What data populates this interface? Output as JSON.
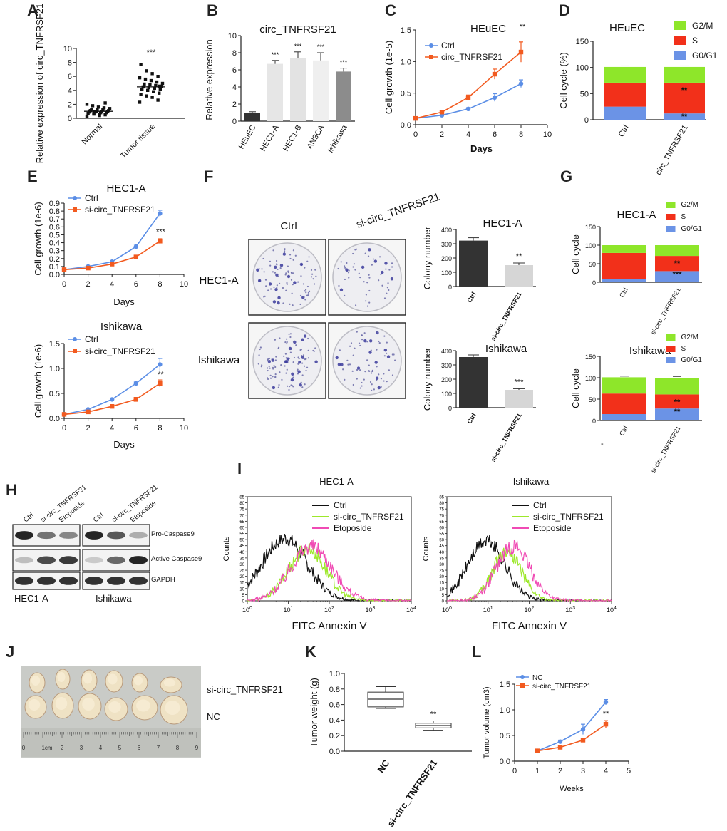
{
  "panels": {
    "A": {
      "letter": "A"
    },
    "B": {
      "letter": "B"
    },
    "C": {
      "letter": "C"
    },
    "D": {
      "letter": "D"
    },
    "E": {
      "letter": "E"
    },
    "F": {
      "letter": "F"
    },
    "G": {
      "letter": "G"
    },
    "H": {
      "letter": "H"
    },
    "I": {
      "letter": "I"
    },
    "J": {
      "letter": "J"
    },
    "K": {
      "letter": "K"
    },
    "L": {
      "letter": "L"
    }
  },
  "colors": {
    "blue": "#5b8ee6",
    "orange": "#f25a1f",
    "green": "#8ee62a",
    "red": "#f2301a",
    "g0blue": "#6b93e6",
    "black": "#111111",
    "pink": "#f04ab4",
    "lime": "#9de82b",
    "dark_bar": "#333333",
    "light_bar": "#d6d6d6"
  },
  "chart_data": [
    {
      "id": "A",
      "type": "scatter",
      "ylabel": "Relative expression of circ_TNFRSF21",
      "categories": [
        "Normal",
        "Tumor tissue"
      ],
      "yticks": [
        0,
        2,
        4,
        6,
        8,
        10
      ],
      "ylim": [
        0,
        10
      ],
      "significance": "***",
      "groups": [
        {
          "name": "Normal",
          "values": [
            0.3,
            0.5,
            0.6,
            0.7,
            0.7,
            0.8,
            0.8,
            0.9,
            0.9,
            1.0,
            1.0,
            1.0,
            1.1,
            1.1,
            1.2,
            1.2,
            1.3,
            1.4,
            1.5,
            1.6,
            1.8,
            2.0,
            2.2,
            0.4,
            0.6
          ],
          "mean": 1.0
        },
        {
          "name": "Tumor tissue",
          "values": [
            2.3,
            2.6,
            3.0,
            3.2,
            3.4,
            3.6,
            3.8,
            4.0,
            4.1,
            4.2,
            4.3,
            4.4,
            4.5,
            4.6,
            4.7,
            4.8,
            4.9,
            5.0,
            5.2,
            5.4,
            5.6,
            5.8,
            6.0,
            6.4,
            6.8,
            7.7,
            4.6
          ],
          "mean": 4.5
        }
      ]
    },
    {
      "id": "B",
      "type": "bar",
      "title": "circ_TNFRSF21",
      "ylabel": "Relative expression",
      "categories": [
        "HEuEC",
        "HEC1-A",
        "HEC1-B",
        "AN3CA",
        "Ishikawa"
      ],
      "values": [
        1.0,
        6.7,
        7.4,
        7.1,
        5.8
      ],
      "errors": [
        0.1,
        0.4,
        0.7,
        0.9,
        0.4
      ],
      "significance": [
        "",
        "***",
        "***",
        "***",
        "***"
      ],
      "bar_colors": [
        "#333333",
        "#e6e6e6",
        "#e3e3e3",
        "#efefef",
        "#8c8c8c"
      ],
      "yticks": [
        0,
        2,
        4,
        6,
        8,
        10
      ],
      "ylim": [
        0,
        10
      ]
    },
    {
      "id": "C",
      "type": "line",
      "title": "HEuEC",
      "xlabel": "Days",
      "ylabel": "Cell growth (1e-5)",
      "xticks": [
        0,
        2,
        4,
        6,
        8,
        10
      ],
      "yticks": [
        "0.0",
        "0.5",
        "1.0",
        "1.5"
      ],
      "xlim": [
        0,
        10
      ],
      "ylim": [
        0,
        1.5
      ],
      "x": [
        0,
        2,
        4,
        6,
        8
      ],
      "series": [
        {
          "name": "Ctrl",
          "values": [
            0.1,
            0.15,
            0.25,
            0.43,
            0.65
          ],
          "errors": [
            0,
            0.01,
            0.02,
            0.06,
            0.06
          ],
          "color": "#5b8ee6",
          "marker": "circle"
        },
        {
          "name": "circ_TNFRSF21",
          "values": [
            0.1,
            0.2,
            0.43,
            0.8,
            1.15
          ],
          "errors": [
            0,
            0.02,
            0.04,
            0.08,
            0.16
          ],
          "color": "#f25a1f",
          "marker": "square"
        }
      ],
      "significance": "**",
      "legend": [
        "Ctrl",
        "circ_TNFRSF21"
      ]
    },
    {
      "id": "D",
      "type": "bar",
      "title": "HEuEC",
      "ylabel": "Cell cycle (%)",
      "categories": [
        "Ctrl",
        "circ_TNFRSF21"
      ],
      "series": [
        {
          "name": "G0/G1",
          "values": [
            25,
            12
          ],
          "color": "#6b93e6"
        },
        {
          "name": "S",
          "values": [
            46,
            59
          ],
          "color": "#f2301a"
        },
        {
          "name": "G2/M",
          "values": [
            30,
            30
          ],
          "color": "#8ee62a"
        }
      ],
      "legend": [
        "G2/M",
        "S",
        "G0/G1"
      ],
      "yticks": [
        0,
        50,
        100,
        150
      ],
      "ylim": [
        0,
        150
      ],
      "significance": [
        "**",
        "**"
      ]
    },
    {
      "id": "E1",
      "type": "line",
      "title": "HEC1-A",
      "xlabel": "Days",
      "ylabel": "Cell growth (1e-6)",
      "xticks": [
        0,
        2,
        4,
        6,
        8,
        10
      ],
      "yticks": [
        "0.0",
        "0.1",
        "0.2",
        "0.3",
        "0.4",
        "0.5",
        "0.6",
        "0.7",
        "0.8",
        "0.9"
      ],
      "xlim": [
        0,
        10
      ],
      "ylim": [
        0,
        0.9
      ],
      "x": [
        0,
        2,
        4,
        6,
        8
      ],
      "series": [
        {
          "name": "Ctrl",
          "values": [
            0.06,
            0.1,
            0.16,
            0.35,
            0.77
          ],
          "errors": [
            0,
            0.01,
            0.01,
            0.03,
            0.04
          ],
          "color": "#5b8ee6",
          "marker": "circle"
        },
        {
          "name": "si-circ_TNFRSF21",
          "values": [
            0.06,
            0.08,
            0.13,
            0.22,
            0.42
          ],
          "errors": [
            0,
            0.01,
            0.01,
            0.01,
            0.03
          ],
          "color": "#f25a1f",
          "marker": "square"
        }
      ],
      "significance": "***",
      "legend": [
        "Ctrl",
        "si-circ_TNFRSF21"
      ]
    },
    {
      "id": "E2",
      "type": "line",
      "title": "Ishikawa",
      "xlabel": "Days",
      "ylabel": "Cell growth (1e-6)",
      "xticks": [
        0,
        2,
        4,
        6,
        8,
        10
      ],
      "yticks": [
        "0.0",
        "0.5",
        "1.0",
        "1.5"
      ],
      "xlim": [
        0,
        10
      ],
      "ylim": [
        0,
        1.5
      ],
      "x": [
        0,
        2,
        4,
        6,
        8
      ],
      "series": [
        {
          "name": "Ctrl",
          "values": [
            0.08,
            0.18,
            0.38,
            0.7,
            1.08
          ],
          "errors": [
            0,
            0.02,
            0.02,
            0.03,
            0.12
          ],
          "color": "#5b8ee6",
          "marker": "circle"
        },
        {
          "name": "si-circ_TNFRSF21",
          "values": [
            0.08,
            0.13,
            0.24,
            0.38,
            0.7
          ],
          "errors": [
            0,
            0.02,
            0.02,
            0.04,
            0.07
          ],
          "color": "#f25a1f",
          "marker": "square"
        }
      ],
      "significance": "**",
      "legend": [
        "Ctrl",
        "si-circ_TNFRSF21"
      ]
    },
    {
      "id": "F1",
      "type": "bar",
      "title": "HEC1-A",
      "ylabel": "Colony number",
      "categories": [
        "Ctrl",
        "si-circ_TNFRSF21"
      ],
      "values": [
        322,
        150
      ],
      "errors": [
        20,
        15
      ],
      "bar_colors": [
        "#333333",
        "#d6d6d6"
      ],
      "yticks": [
        0,
        100,
        200,
        300,
        400
      ],
      "ylim": [
        0,
        400
      ],
      "significance": "**"
    },
    {
      "id": "F2",
      "type": "bar",
      "title": "Ishikawa",
      "ylabel": "Colony number",
      "categories": [
        "Ctrl",
        "si-circ_TNFRSF21"
      ],
      "values": [
        355,
        125
      ],
      "errors": [
        15,
        8
      ],
      "bar_colors": [
        "#333333",
        "#d6d6d6"
      ],
      "yticks": [
        0,
        100,
        200,
        300,
        400
      ],
      "ylim": [
        0,
        400
      ],
      "significance": "***"
    },
    {
      "id": "G1",
      "type": "bar",
      "title": "HEC1-A",
      "ylabel": "Cell cycle",
      "categories": [
        "Ctrl",
        "si-circ_TNFRSF21"
      ],
      "series": [
        {
          "name": "G0/G1",
          "values": [
            9,
            30
          ],
          "color": "#6b93e6"
        },
        {
          "name": "S",
          "values": [
            70,
            41
          ],
          "color": "#f2301a"
        },
        {
          "name": "G2/M",
          "values": [
            21,
            29
          ],
          "color": "#8ee62a"
        }
      ],
      "legend": [
        "G2/M",
        "S",
        "G0/G1"
      ],
      "yticks": [
        0,
        50,
        100,
        150
      ],
      "ylim": [
        0,
        150
      ],
      "significance": [
        "**",
        "***"
      ]
    },
    {
      "id": "G2",
      "type": "bar",
      "title": "Ishikawa",
      "ylabel": "Cell cycle",
      "categories": [
        "Ctrl",
        "si-circ_TNFRSF21"
      ],
      "series": [
        {
          "name": "G0/G1",
          "values": [
            15,
            28
          ],
          "color": "#6b93e6"
        },
        {
          "name": "S",
          "values": [
            48,
            33
          ],
          "color": "#f2301a"
        },
        {
          "name": "G2/M",
          "values": [
            38,
            39
          ],
          "color": "#8ee62a"
        }
      ],
      "legend": [
        "G2/M",
        "S",
        "G0/G1"
      ],
      "yticks": [
        0,
        50,
        100,
        150
      ],
      "ylim": [
        0,
        150
      ],
      "significance": [
        "**",
        "**"
      ],
      "extra_tick": "-"
    },
    {
      "id": "I1",
      "type": "line",
      "title": "HEC1-A",
      "xlabel": "FITC Annexin V",
      "ylabel": "Counts",
      "xticks_base": "10",
      "xticks_exp": [
        "0",
        "1",
        "2",
        "3",
        "4"
      ],
      "yticks": [
        0,
        5,
        10,
        15,
        20,
        25,
        30,
        35,
        40,
        45,
        50,
        55,
        60,
        65,
        70,
        75,
        80,
        85
      ],
      "ylim": [
        0,
        85
      ],
      "series": [
        {
          "name": "Ctrl",
          "color": "#111111",
          "peak_log": 0.9,
          "peak": 50,
          "width": 0.55
        },
        {
          "name": "si-circ_TNFRSF21",
          "color": "#9de82b",
          "peak_log": 1.45,
          "peak": 42,
          "width": 0.45
        },
        {
          "name": "Etoposide",
          "color": "#f04ab4",
          "peak_log": 1.55,
          "peak": 44,
          "width": 0.5
        }
      ],
      "legend": [
        "Ctrl",
        "si-circ_TNFRSF21",
        "Etoposide"
      ]
    },
    {
      "id": "I2",
      "type": "line",
      "title": "Ishikawa",
      "xlabel": "FITC Annexin V",
      "ylabel": "Counts",
      "xticks_base": "10",
      "xticks_exp": [
        "0",
        "1",
        "2",
        "3",
        "4"
      ],
      "yticks": [
        0,
        5,
        10,
        15,
        20,
        25,
        30,
        35,
        40,
        45,
        50,
        55,
        60,
        65,
        70,
        75,
        80,
        85
      ],
      "ylim": [
        0,
        85
      ],
      "series": [
        {
          "name": "Ctrl",
          "color": "#111111",
          "peak_log": 0.95,
          "peak": 48,
          "width": 0.45
        },
        {
          "name": "si-circ_TNFRSF21",
          "color": "#9de82b",
          "peak_log": 1.45,
          "peak": 40,
          "width": 0.35
        },
        {
          "name": "Etoposide",
          "color": "#f04ab4",
          "peak_log": 1.6,
          "peak": 44,
          "width": 0.4
        }
      ],
      "legend": [
        "Ctrl",
        "si-circ_TNFRSF21",
        "Etoposide"
      ]
    },
    {
      "id": "K",
      "type": "box",
      "ylabel": "Tumor weight (g)",
      "categories": [
        "NC",
        "si-circ_TNFRSF21"
      ],
      "boxes": [
        {
          "name": "NC",
          "min": 0.55,
          "q1": 0.57,
          "median": 0.67,
          "q3": 0.76,
          "max": 0.83
        },
        {
          "name": "si-circ_TNFRSF21",
          "min": 0.27,
          "q1": 0.3,
          "median": 0.33,
          "q3": 0.36,
          "max": 0.39
        }
      ],
      "yticks": [
        "0.0",
        "0.2",
        "0.4",
        "0.6",
        "0.8",
        "1.0"
      ],
      "ylim": [
        0,
        1.0
      ],
      "significance": "**"
    },
    {
      "id": "L",
      "type": "line",
      "xlabel": "Weeks",
      "ylabel": "Tumor volume (cm3)",
      "xticks": [
        0,
        1,
        2,
        3,
        4,
        5
      ],
      "yticks": [
        "0.0",
        "0.5",
        "1.0",
        "1.5"
      ],
      "xlim": [
        0,
        5
      ],
      "ylim": [
        0,
        1.5
      ],
      "x": [
        1,
        2,
        3,
        4
      ],
      "series": [
        {
          "name": "NC",
          "values": [
            0.2,
            0.38,
            0.62,
            1.15
          ],
          "errors": [
            0.02,
            0.03,
            0.1,
            0.05
          ],
          "color": "#5b8ee6",
          "marker": "circle"
        },
        {
          "name": "si-circ_TNFRSF21",
          "values": [
            0.2,
            0.27,
            0.41,
            0.72
          ],
          "errors": [
            0.02,
            0.02,
            0.02,
            0.07
          ],
          "color": "#f25a1f",
          "marker": "square"
        }
      ],
      "significance": "**",
      "legend": [
        "NC",
        "si-circ_TNFRSF21"
      ]
    }
  ],
  "colony": {
    "col_labels": [
      "Ctrl",
      "si-circ_TNFRSF21"
    ],
    "row_labels": [
      "HEC1-A",
      "Ishikawa"
    ]
  },
  "western": {
    "lanes": [
      "Ctrl",
      "si-circ_TNFRSF21",
      "Etoposide",
      "Ctrl",
      "si-circ_TNFRSF21",
      "Etoposide"
    ],
    "bands": [
      "Pro-Caspase9",
      "Active Caspase9",
      "GAPDH"
    ],
    "cell_lines": [
      "HEC1-A",
      "Ishikawa"
    ]
  },
  "tumor_photo": {
    "row_labels": [
      "si-circ_TNFRSF21",
      "NC"
    ],
    "ruler_labels": [
      "0",
      "1cm",
      "2",
      "3",
      "4",
      "5",
      "6",
      "7",
      "8",
      "9"
    ]
  }
}
